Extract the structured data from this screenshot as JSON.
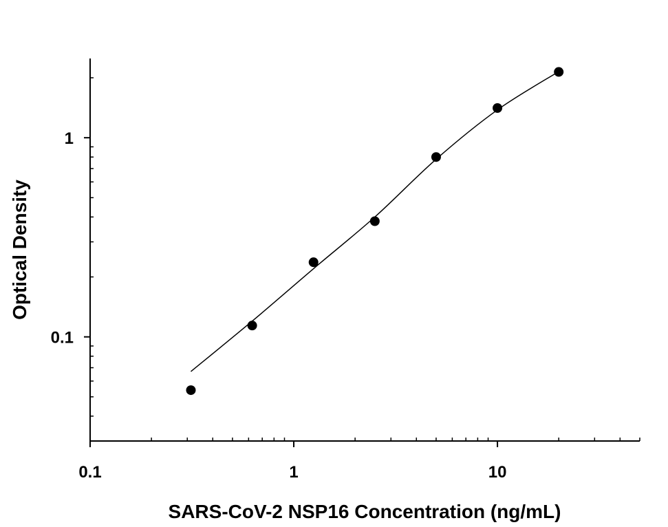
{
  "chart_data": {
    "type": "scatter",
    "title": "",
    "xlabel": "SARS-CoV-2 NSP16 Concentration (ng/mL)",
    "ylabel": "Optical Density",
    "xscale": "log",
    "yscale": "log",
    "xlim": [
      0.1,
      50
    ],
    "ylim": [
      0.03,
      2.5
    ],
    "x_ticks": [
      {
        "value": 0.1,
        "label": "0.1"
      },
      {
        "value": 1,
        "label": "1"
      },
      {
        "value": 10,
        "label": "10"
      }
    ],
    "y_ticks": [
      {
        "value": 0.1,
        "label": "0.1"
      },
      {
        "value": 1,
        "label": "1"
      }
    ],
    "grid": false,
    "legend": "none",
    "series": [
      {
        "kind": "points",
        "color": "#000000",
        "x": [
          0.3125,
          0.625,
          1.25,
          2.5,
          5,
          10,
          20
        ],
        "y": [
          0.054,
          0.114,
          0.237,
          0.381,
          0.8,
          1.41,
          2.14
        ]
      },
      {
        "kind": "fit-curve",
        "color": "#000000",
        "x": [
          0.3125,
          0.625,
          1.25,
          2.5,
          5,
          10,
          20
        ],
        "y": [
          0.067,
          0.12,
          0.22,
          0.4,
          0.78,
          1.38,
          2.15
        ]
      }
    ]
  }
}
